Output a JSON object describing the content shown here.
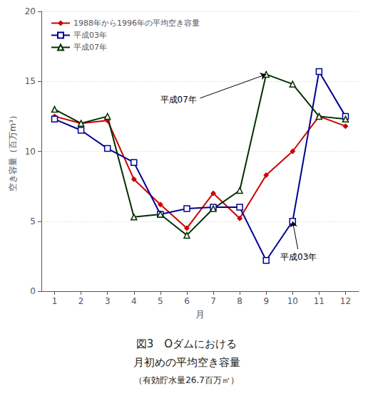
{
  "chart_data": {
    "type": "line",
    "title": [
      "図3　Oダムにおける",
      "月初めの平均空き容量"
    ],
    "subtitle": "（有効貯水量26.7百万㎥）",
    "x_label": "月",
    "y_label": "空き容量（百万m³）",
    "x": [
      1,
      2,
      3,
      4,
      5,
      6,
      7,
      8,
      9,
      10,
      11,
      12
    ],
    "xlim": [
      0.5,
      12.5
    ],
    "xticks": [
      1,
      2,
      3,
      4,
      5,
      6,
      7,
      8,
      9,
      10,
      11,
      12
    ],
    "ylim": [
      0,
      20
    ],
    "yticks": [
      0,
      5,
      10,
      15,
      20
    ],
    "grid": true,
    "legend": "upper left",
    "series": [
      {
        "name": "1988年から1996年の平均空き容量",
        "color": "#cc0000",
        "marker": "diamond",
        "values": [
          12.5,
          12.0,
          12.2,
          8.0,
          6.2,
          4.5,
          7.0,
          5.2,
          8.3,
          10.0,
          12.5,
          11.8
        ]
      },
      {
        "name": "平成03年",
        "color": "#000090",
        "marker": "open-square",
        "values": [
          12.3,
          11.5,
          10.2,
          9.2,
          5.5,
          5.9,
          6.0,
          6.0,
          2.2,
          5.0,
          15.7,
          12.5
        ]
      },
      {
        "name": "平成07年",
        "color": "#003000",
        "marker": "open-triangle",
        "values": [
          13.0,
          12.0,
          12.5,
          5.3,
          5.5,
          4.0,
          5.9,
          7.2,
          15.5,
          14.8,
          12.5,
          12.3
        ]
      }
    ],
    "annotations": [
      {
        "text": "平成07年",
        "x": 9,
        "y": 15.5,
        "text_x": 6.5,
        "text_y": 13.8
      },
      {
        "text": "平成03年",
        "x": 10.0,
        "y": 5.0,
        "text_x": 10.2,
        "text_y": 3.0
      }
    ]
  }
}
